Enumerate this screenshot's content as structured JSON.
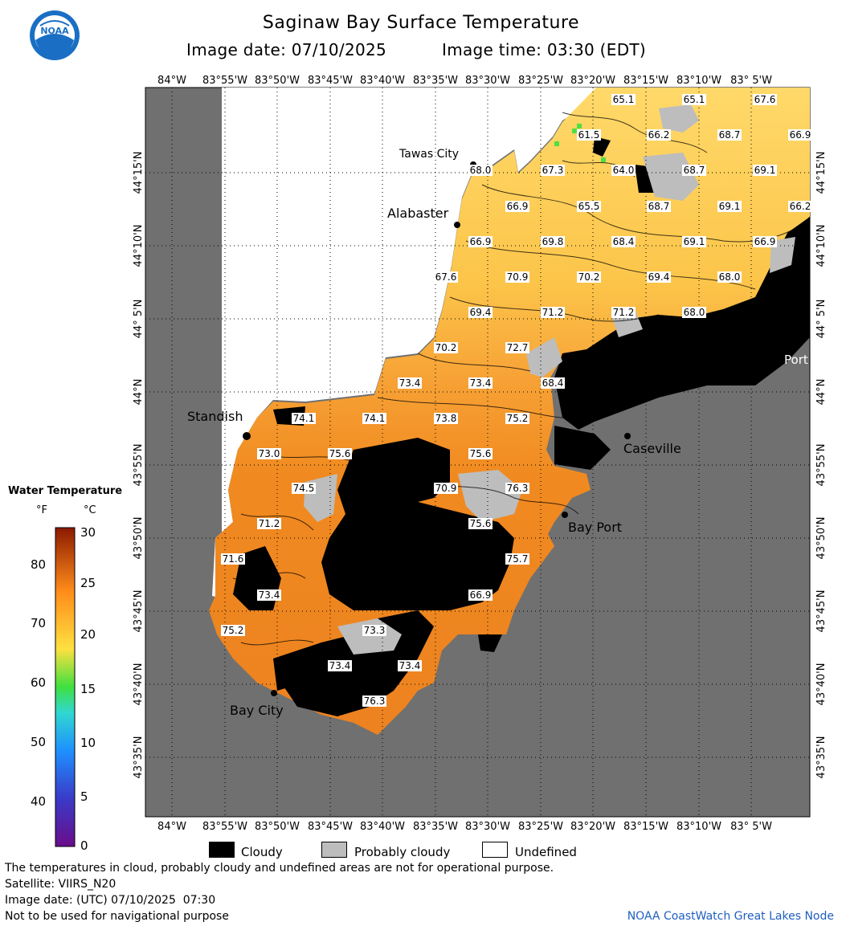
{
  "header": {
    "title": "Saginaw Bay Surface Temperature",
    "image_date": "Image date: 07/10/2025",
    "image_time": "Image time: 03:30 (EDT)",
    "logo_text": "NOAA"
  },
  "axes": {
    "lon_labels": [
      "84°W",
      "83°55'W",
      "83°50'W",
      "83°45'W",
      "83°40'W",
      "83°35'W",
      "83°30'W",
      "83°25'W",
      "83°20'W",
      "83°15'W",
      "83°10'W",
      "83° 5'W"
    ],
    "lat_labels": [
      "44°15'N",
      "44°10'N",
      "44° 5'N",
      "44°N",
      "43°55'N",
      "43°50'N",
      "43°45'N",
      "43°40'N",
      "43°35'N"
    ]
  },
  "places": [
    {
      "name": "Tawas City"
    },
    {
      "name": "Alabaster"
    },
    {
      "name": "Standish"
    },
    {
      "name": "Caseville"
    },
    {
      "name": "Bay Port"
    },
    {
      "name": "Bay City"
    },
    {
      "name": "Port"
    }
  ],
  "temperatures": [
    "65.1",
    "65.1",
    "67.6",
    "61.5",
    "66.2",
    "68.7",
    "66.9",
    "68.0",
    "67.3",
    "64.0",
    "68.7",
    "69.1",
    "66.9",
    "65.5",
    "68.7",
    "69.1",
    "66.2",
    "66.9",
    "69.8",
    "68.4",
    "69.1",
    "66.9",
    "67.6",
    "70.9",
    "70.2",
    "69.4",
    "68.0",
    "69.4",
    "71.2",
    "71.2",
    "68.0",
    "70.2",
    "72.7",
    "73.4",
    "73.4",
    "68.4",
    "74.1",
    "74.1",
    "73.8",
    "75.2",
    "73.0",
    "75.6",
    "75.6",
    "74.5",
    "70.9",
    "76.3",
    "71.2",
    "75.6",
    "71.6",
    "75.7",
    "73.4",
    "66.9",
    "75.2",
    "73.3",
    "73.4",
    "73.4",
    "76.3"
  ],
  "legend": {
    "title": "Water Temperature",
    "unit_f": "°F",
    "unit_c": "°C",
    "f_ticks": [
      "80",
      "70",
      "60",
      "50",
      "40"
    ],
    "c_ticks": [
      "30",
      "25",
      "20",
      "15",
      "10",
      "5",
      "0"
    ],
    "colors": {
      "cold": "#6a0d8a",
      "cool": "#1e90ff",
      "mid": "#3fe03f",
      "warm": "#ffe040",
      "hot": "#ff8c1a",
      "max": "#8b1a00"
    }
  },
  "key": {
    "cloudy": "Cloudy",
    "probably_cloudy": "Probably cloudy",
    "undefined": "Undefined"
  },
  "footer": {
    "note": "The temperatures in cloud, probably cloudy and undefined areas are not for operational purpose.",
    "satellite": "Satellite: VIIRS_N20",
    "utc_date": "Image date: (UTC) 07/10/2025  07:30",
    "nav_warning": "Not to be used for navigational purpose",
    "credit": "NOAA CoastWatch Great Lakes Node"
  },
  "colors": {
    "land": "#707070",
    "cloud": "#000000",
    "probably_cloudy": "#bdbdbd",
    "undefined": "#ffffff",
    "warm_water": "#f08a20",
    "cool_water": "#ffcf55"
  }
}
